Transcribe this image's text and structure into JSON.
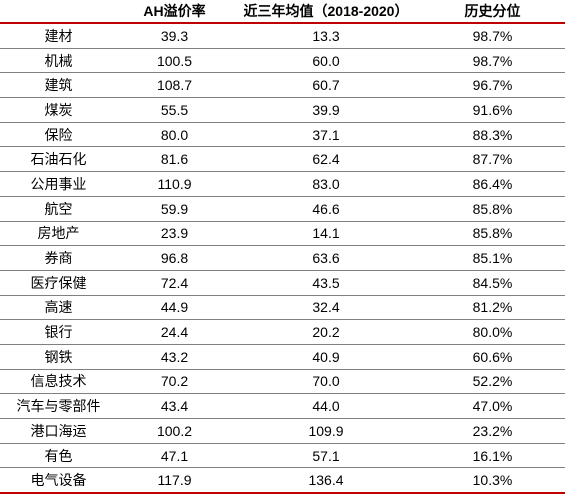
{
  "header": {
    "col1": "",
    "col2": "AH溢价率",
    "col3": "近三年均值（2018-2020）",
    "col4": "历史分位"
  },
  "rows": [
    {
      "industry": "建材",
      "ah_premium": "39.3",
      "avg_3y": "13.3",
      "percentile": "98.7%"
    },
    {
      "industry": "机械",
      "ah_premium": "100.5",
      "avg_3y": "60.0",
      "percentile": "98.7%"
    },
    {
      "industry": "建筑",
      "ah_premium": "108.7",
      "avg_3y": "60.7",
      "percentile": "96.7%"
    },
    {
      "industry": "煤炭",
      "ah_premium": "55.5",
      "avg_3y": "39.9",
      "percentile": "91.6%"
    },
    {
      "industry": "保险",
      "ah_premium": "80.0",
      "avg_3y": "37.1",
      "percentile": "88.3%"
    },
    {
      "industry": "石油石化",
      "ah_premium": "81.6",
      "avg_3y": "62.4",
      "percentile": "87.7%"
    },
    {
      "industry": "公用事业",
      "ah_premium": "110.9",
      "avg_3y": "83.0",
      "percentile": "86.4%"
    },
    {
      "industry": "航空",
      "ah_premium": "59.9",
      "avg_3y": "46.6",
      "percentile": "85.8%"
    },
    {
      "industry": "房地产",
      "ah_premium": "23.9",
      "avg_3y": "14.1",
      "percentile": "85.8%"
    },
    {
      "industry": "券商",
      "ah_premium": "96.8",
      "avg_3y": "63.6",
      "percentile": "85.1%"
    },
    {
      "industry": "医疗保健",
      "ah_premium": "72.4",
      "avg_3y": "43.5",
      "percentile": "84.5%"
    },
    {
      "industry": "高速",
      "ah_premium": "44.9",
      "avg_3y": "32.4",
      "percentile": "81.2%"
    },
    {
      "industry": "银行",
      "ah_premium": "24.4",
      "avg_3y": "20.2",
      "percentile": "80.0%"
    },
    {
      "industry": "钢铁",
      "ah_premium": "43.2",
      "avg_3y": "40.9",
      "percentile": "60.6%"
    },
    {
      "industry": "信息技术",
      "ah_premium": "70.2",
      "avg_3y": "70.0",
      "percentile": "52.2%"
    },
    {
      "industry": "汽车与零部件",
      "ah_premium": "43.4",
      "avg_3y": "44.0",
      "percentile": "47.0%"
    },
    {
      "industry": "港口海运",
      "ah_premium": "100.2",
      "avg_3y": "109.9",
      "percentile": "23.2%"
    },
    {
      "industry": "有色",
      "ah_premium": "47.1",
      "avg_3y": "57.1",
      "percentile": "16.1%"
    },
    {
      "industry": "电气设备",
      "ah_premium": "117.9",
      "avg_3y": "136.4",
      "percentile": "10.3%"
    }
  ],
  "colors": {
    "rule_accent": "#c00000",
    "row_divider": "#808080"
  }
}
